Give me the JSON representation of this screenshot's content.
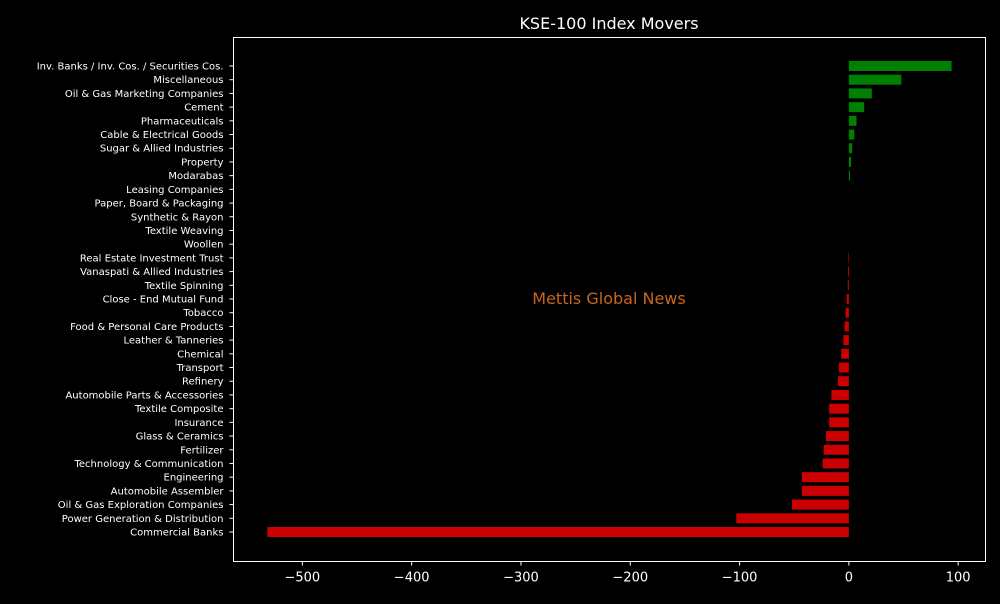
{
  "chart_data": {
    "type": "bar",
    "orientation": "horizontal",
    "title": "KSE-100 Index Movers",
    "watermark": "Mettis Global News",
    "xlabel": "",
    "ylabel": "",
    "xlim": [
      -563,
      125
    ],
    "xticks": [
      -500,
      -400,
      -300,
      -200,
      -100,
      0,
      100
    ],
    "grid": false,
    "legend": "none",
    "colors": {
      "background": "#000000",
      "axes": "#ffffff",
      "text": "#ffffff",
      "positive": "#008000",
      "negative": "#cc0000",
      "watermark": "#c8661e"
    },
    "categories": [
      "Inv. Banks / Inv. Cos. / Securities Cos.",
      "Miscellaneous",
      "Oil & Gas Marketing Companies",
      "Cement",
      "Pharmaceuticals",
      "Cable & Electrical Goods",
      "Sugar & Allied Industries",
      "Property",
      "Modarabas",
      "Leasing Companies",
      "Paper, Board & Packaging",
      "Synthetic & Rayon",
      "Textile Weaving",
      "Woollen",
      "Real Estate Investment Trust",
      "Vanaspati & Allied Industries",
      "Textile Spinning",
      "Close - End Mutual Fund",
      "Tobacco",
      "Food & Personal Care Products",
      "Leather & Tanneries",
      "Chemical",
      "Transport",
      "Refinery",
      "Automobile Parts & Accessories",
      "Textile Composite",
      "Insurance",
      "Glass & Ceramics",
      "Fertilizer",
      "Technology & Communication",
      "Engineering",
      "Automobile Assembler",
      "Oil & Gas Exploration Companies",
      "Power Generation & Distribution",
      "Commercial Banks"
    ],
    "values": [
      94,
      48,
      21,
      14,
      7,
      5,
      3,
      2,
      1,
      0,
      0,
      0,
      0,
      0,
      -0.5,
      -0.8,
      -1,
      -2,
      -3,
      -4,
      -5,
      -7,
      -9,
      -10,
      -16,
      -18,
      -18,
      -21,
      -23,
      -24,
      -43,
      -43,
      -52,
      -103,
      -532
    ]
  }
}
